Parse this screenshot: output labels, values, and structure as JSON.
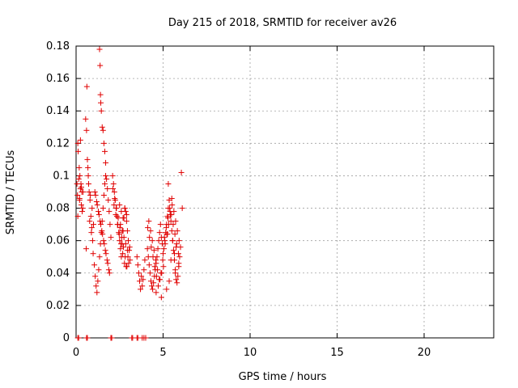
{
  "chart_data": {
    "type": "scatter",
    "title": "Day 215 of 2018, SRMTID for receiver av26",
    "xlabel": "GPS time / hours",
    "ylabel": "SRMTID / TECUs",
    "xlim": [
      0,
      24
    ],
    "ylim": [
      0,
      0.18
    ],
    "xticks": [
      0,
      5,
      10,
      15,
      20
    ],
    "xtick_labels": [
      "0",
      "5",
      "10",
      "15",
      "20"
    ],
    "yticks": [
      0,
      0.02,
      0.04,
      0.06,
      0.08,
      0.1,
      0.12,
      0.14,
      0.16,
      0.18
    ],
    "ytick_labels": [
      "0",
      "0.02",
      "0.04",
      "0.06",
      "0.08",
      "0.1",
      "0.12",
      "0.14",
      "0.16",
      "0.18"
    ],
    "grid": true,
    "legend": "none",
    "marker": "+",
    "marker_color": "#e00000",
    "series": [
      {
        "x": [
          0.05,
          0.08,
          0.1,
          0.15,
          0.2,
          0.25,
          0.3,
          0.35,
          0.4,
          0.12,
          0.18,
          0.22,
          0.28,
          0.33,
          0.38,
          0.25,
          0.1,
          0.2,
          0.3,
          0.55,
          0.6,
          0.65,
          0.7,
          0.75,
          0.8,
          0.85,
          0.9,
          0.95,
          1.0,
          0.62,
          0.72,
          0.82,
          0.92,
          0.68,
          0.78,
          0.88,
          0.58,
          0.98,
          1.05,
          1.1,
          1.15,
          1.2,
          1.25,
          1.3,
          1.35,
          1.4,
          1.45,
          1.5,
          1.55,
          1.6,
          1.65,
          1.7,
          1.75,
          1.8,
          1.85,
          1.9,
          1.95,
          2.0,
          1.12,
          1.22,
          1.32,
          1.42,
          1.52,
          1.62,
          1.72,
          1.82,
          1.92,
          1.08,
          1.18,
          1.28,
          1.38,
          1.48,
          1.58,
          1.68,
          1.78,
          1.88,
          1.35,
          1.38,
          1.4,
          1.42,
          1.45,
          1.5,
          1.55,
          1.6,
          1.65,
          1.7,
          2.1,
          2.15,
          2.2,
          2.25,
          2.3,
          2.35,
          2.4,
          2.45,
          2.5,
          2.55,
          2.6,
          2.65,
          2.7,
          2.75,
          2.8,
          2.85,
          2.9,
          2.95,
          3.0,
          3.05,
          3.1,
          2.12,
          2.22,
          2.32,
          2.42,
          2.52,
          2.62,
          2.72,
          2.82,
          2.92,
          3.02,
          2.18,
          2.28,
          2.38,
          2.48,
          2.58,
          2.68,
          2.78,
          2.88,
          2.98,
          3.08,
          2.5,
          2.6,
          2.7,
          2.8,
          2.9,
          2.55,
          2.65,
          2.75,
          2.85,
          2.95,
          3.5,
          3.55,
          3.6,
          3.65,
          3.7,
          3.75,
          3.8,
          3.85,
          3.9,
          3.95,
          4.1,
          4.15,
          4.2,
          4.25,
          4.3,
          4.35,
          4.4,
          4.45,
          4.5,
          4.55,
          4.6,
          4.65,
          4.7,
          4.75,
          4.8,
          4.85,
          4.9,
          4.95,
          5.0,
          4.12,
          4.22,
          4.32,
          4.42,
          4.52,
          4.62,
          4.72,
          4.82,
          4.92,
          5.02,
          4.18,
          4.28,
          4.38,
          4.48,
          4.58,
          4.68,
          4.78,
          4.88,
          4.98,
          5.05,
          5.1,
          5.15,
          5.2,
          5.25,
          5.3,
          5.35,
          5.4,
          5.45,
          5.5,
          5.55,
          5.6,
          5.65,
          5.7,
          5.75,
          5.8,
          5.85,
          5.9,
          5.95,
          6.0,
          5.08,
          5.18,
          5.28,
          5.38,
          5.48,
          5.58,
          5.68,
          5.78,
          5.88,
          5.12,
          5.22,
          5.32,
          5.42,
          5.52,
          5.62,
          5.72,
          5.82,
          5.92,
          5.3,
          5.5,
          5.7,
          5.9,
          6.05,
          6.1,
          4.6,
          4.9,
          5.2,
          5.35,
          5.45,
          5.65,
          5.75,
          5.55,
          5.25,
          0.1,
          0.15,
          0.6,
          0.65,
          2.0,
          2.05,
          3.2,
          3.25,
          3.5,
          3.55,
          3.8,
          3.9,
          4.0
        ],
        "y": [
          0.095,
          0.088,
          0.12,
          0.098,
          0.085,
          0.092,
          0.082,
          0.078,
          0.09,
          0.115,
          0.105,
          0.1,
          0.095,
          0.09,
          0.08,
          0.122,
          0.075,
          0.086,
          0.093,
          0.135,
          0.128,
          0.11,
          0.1,
          0.09,
          0.085,
          0.075,
          0.068,
          0.06,
          0.07,
          0.155,
          0.095,
          0.088,
          0.08,
          0.105,
          0.072,
          0.065,
          0.055,
          0.052,
          0.045,
          0.038,
          0.032,
          0.028,
          0.035,
          0.042,
          0.05,
          0.058,
          0.065,
          0.072,
          0.08,
          0.088,
          0.095,
          0.1,
          0.098,
          0.092,
          0.085,
          0.078,
          0.07,
          0.062,
          0.088,
          0.082,
          0.076,
          0.07,
          0.064,
          0.058,
          0.052,
          0.046,
          0.04,
          0.09,
          0.084,
          0.078,
          0.072,
          0.066,
          0.06,
          0.054,
          0.048,
          0.042,
          0.178,
          0.168,
          0.15,
          0.145,
          0.14,
          0.13,
          0.128,
          0.12,
          0.115,
          0.108,
          0.1,
          0.095,
          0.09,
          0.085,
          0.08,
          0.075,
          0.07,
          0.065,
          0.06,
          0.055,
          0.05,
          0.058,
          0.066,
          0.074,
          0.08,
          0.078,
          0.072,
          0.066,
          0.06,
          0.054,
          0.048,
          0.092,
          0.086,
          0.08,
          0.074,
          0.068,
          0.062,
          0.056,
          0.05,
          0.044,
          0.046,
          0.082,
          0.076,
          0.07,
          0.064,
          0.058,
          0.052,
          0.046,
          0.044,
          0.05,
          0.056,
          0.082,
          0.078,
          0.074,
          0.08,
          0.076,
          0.07,
          0.066,
          0.062,
          0.058,
          0.054,
          0.05,
          0.045,
          0.04,
          0.035,
          0.03,
          0.038,
          0.032,
          0.036,
          0.042,
          0.048,
          0.055,
          0.05,
          0.045,
          0.04,
          0.035,
          0.032,
          0.03,
          0.034,
          0.038,
          0.042,
          0.046,
          0.05,
          0.055,
          0.06,
          0.065,
          0.07,
          0.062,
          0.058,
          0.052,
          0.068,
          0.062,
          0.056,
          0.05,
          0.044,
          0.038,
          0.032,
          0.036,
          0.04,
          0.044,
          0.072,
          0.066,
          0.06,
          0.054,
          0.048,
          0.042,
          0.036,
          0.04,
          0.048,
          0.055,
          0.06,
          0.065,
          0.07,
          0.075,
          0.08,
          0.085,
          0.078,
          0.072,
          0.066,
          0.06,
          0.054,
          0.048,
          0.042,
          0.036,
          0.034,
          0.038,
          0.044,
          0.05,
          0.056,
          0.062,
          0.068,
          0.074,
          0.08,
          0.076,
          0.07,
          0.064,
          0.058,
          0.052,
          0.058,
          0.064,
          0.07,
          0.076,
          0.082,
          0.078,
          0.072,
          0.066,
          0.06,
          0.095,
          0.086,
          0.04,
          0.046,
          0.102,
          0.08,
          0.028,
          0.025,
          0.03,
          0.035,
          0.048,
          0.052,
          0.056,
          0.06,
          0.064,
          0,
          0,
          0,
          0,
          0,
          0,
          0,
          0,
          0,
          0,
          0,
          0,
          0
        ]
      }
    ]
  }
}
